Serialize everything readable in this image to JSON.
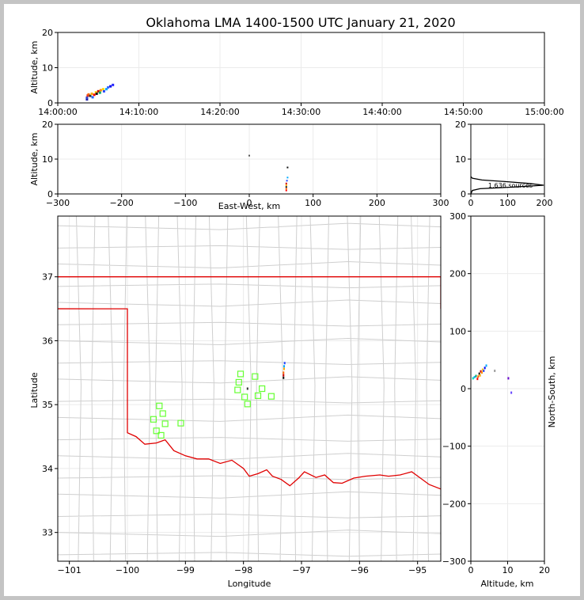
{
  "title": "Oklahoma LMA 1400-1500 UTC January 21, 2020",
  "colors": {
    "frame": "#c4c4c4",
    "grid": "#ebebeb",
    "county": "#cfcfcf",
    "state_border": "#e00000",
    "station": "#66ff33",
    "axis": "#000000"
  },
  "chart_data": [
    {
      "id": "time_height",
      "type": "scatter",
      "xlabel": "",
      "ylabel": "Altitude, km",
      "xticks": [
        "14:00:00",
        "14:10:00",
        "14:20:00",
        "14:30:00",
        "14:40:00",
        "14:50:00",
        "15:00:00"
      ],
      "xlim_minutes": [
        0,
        60
      ],
      "ylim": [
        0,
        20
      ],
      "yticks": [
        0,
        10,
        20
      ],
      "points": [
        {
          "t": 3.6,
          "z": 1.0,
          "c": "#2222aa"
        },
        {
          "t": 3.6,
          "z": 1.5,
          "c": "#3344cc"
        },
        {
          "t": 3.7,
          "z": 2.1,
          "c": "#dd2222"
        },
        {
          "t": 3.8,
          "z": 2.4,
          "c": "#ff6600"
        },
        {
          "t": 4.0,
          "z": 2.0,
          "c": "#333333"
        },
        {
          "t": 4.2,
          "z": 2.6,
          "c": "#ffaa00"
        },
        {
          "t": 4.3,
          "z": 1.6,
          "c": "#2266ff"
        },
        {
          "t": 4.5,
          "z": 2.3,
          "c": "#ff0000"
        },
        {
          "t": 4.7,
          "z": 3.0,
          "c": "#ffcc00"
        },
        {
          "t": 4.8,
          "z": 2.6,
          "c": "#111111"
        },
        {
          "t": 5.0,
          "z": 3.3,
          "c": "#cc0000"
        },
        {
          "t": 5.2,
          "z": 2.9,
          "c": "#00aa66"
        },
        {
          "t": 5.3,
          "z": 3.6,
          "c": "#ff8800"
        },
        {
          "t": 5.6,
          "z": 3.9,
          "c": "#ffdd00"
        },
        {
          "t": 5.7,
          "z": 3.3,
          "c": "#2244ff"
        },
        {
          "t": 6.0,
          "z": 3.9,
          "c": "#00aaff"
        },
        {
          "t": 6.2,
          "z": 4.4,
          "c": "#3366ff"
        },
        {
          "t": 6.5,
          "z": 4.7,
          "c": "#0000ee"
        },
        {
          "t": 6.8,
          "z": 5.1,
          "c": "#2222ff"
        }
      ]
    },
    {
      "id": "ew_height",
      "type": "scatter",
      "xlabel": "East-West, km",
      "ylabel": "Altitude, km",
      "xticks": [
        -300,
        -200,
        -100,
        0,
        100,
        200,
        300
      ],
      "xlim": [
        -300,
        300
      ],
      "ylim": [
        0,
        20
      ],
      "yticks": [
        0,
        10,
        20
      ],
      "points": [
        {
          "x": 58,
          "z": 1.0,
          "c": "#ff0000"
        },
        {
          "x": 58,
          "z": 1.5,
          "c": "#ff6600"
        },
        {
          "x": 58,
          "z": 2.0,
          "c": "#111111"
        },
        {
          "x": 58,
          "z": 2.5,
          "c": "#ffaa00"
        },
        {
          "x": 58,
          "z": 3.0,
          "c": "#cc0000"
        },
        {
          "x": 59,
          "z": 3.8,
          "c": "#2244ff"
        },
        {
          "x": 60,
          "z": 4.7,
          "c": "#00aaff"
        },
        {
          "x": 60,
          "z": 7.6,
          "c": "#111111"
        },
        {
          "x": 0,
          "z": 11.0,
          "c": "#555555"
        }
      ]
    },
    {
      "id": "altitude_histogram",
      "type": "line",
      "xlabel": "",
      "ylabel": "",
      "xticks": [
        0,
        100,
        200
      ],
      "xlim": [
        0,
        200
      ],
      "ylim": [
        0,
        20
      ],
      "yticks": [
        0,
        10,
        20
      ],
      "annotation": "1,636 sources",
      "profile": [
        {
          "z": 0.0,
          "n": 0
        },
        {
          "z": 1.0,
          "n": 4
        },
        {
          "z": 1.5,
          "n": 25
        },
        {
          "z": 2.0,
          "n": 120
        },
        {
          "z": 2.5,
          "n": 198
        },
        {
          "z": 3.0,
          "n": 160
        },
        {
          "z": 3.5,
          "n": 100
        },
        {
          "z": 4.0,
          "n": 30
        },
        {
          "z": 4.5,
          "n": 4
        },
        {
          "z": 5.0,
          "n": 0
        }
      ]
    },
    {
      "id": "plan_view",
      "type": "scatter",
      "xlabel": "Longitude",
      "ylabel": "Latitude",
      "xticks": [
        -101,
        -100,
        -99,
        -98,
        -97,
        -96,
        -95
      ],
      "yticks": [
        33,
        34,
        35,
        36,
        37
      ],
      "xlim": [
        -101.2,
        -94.6
      ],
      "ylim": [
        32.55,
        37.95
      ],
      "stations": [
        {
          "lon": -98.05,
          "lat": 35.48
        },
        {
          "lon": -98.08,
          "lat": 35.35
        },
        {
          "lon": -98.1,
          "lat": 35.23
        },
        {
          "lon": -97.98,
          "lat": 35.12
        },
        {
          "lon": -97.93,
          "lat": 35.01
        },
        {
          "lon": -97.8,
          "lat": 35.44
        },
        {
          "lon": -97.68,
          "lat": 35.25
        },
        {
          "lon": -97.75,
          "lat": 35.14
        },
        {
          "lon": -97.52,
          "lat": 35.13
        },
        {
          "lon": -99.45,
          "lat": 34.98
        },
        {
          "lon": -99.39,
          "lat": 34.86
        },
        {
          "lon": -99.55,
          "lat": 34.77
        },
        {
          "lon": -99.35,
          "lat": 34.7
        },
        {
          "lon": -99.08,
          "lat": 34.71
        },
        {
          "lon": -99.5,
          "lat": 34.59
        },
        {
          "lon": -99.42,
          "lat": 34.52
        }
      ],
      "sources": [
        {
          "lon": -97.31,
          "lat": 35.42,
          "c": "#111111"
        },
        {
          "lon": -97.31,
          "lat": 35.46,
          "c": "#cc0000"
        },
        {
          "lon": -97.31,
          "lat": 35.5,
          "c": "#ff6600"
        },
        {
          "lon": -97.3,
          "lat": 35.56,
          "c": "#ffaa00"
        },
        {
          "lon": -97.3,
          "lat": 35.6,
          "c": "#00aaff"
        },
        {
          "lon": -97.29,
          "lat": 35.65,
          "c": "#2244ff"
        },
        {
          "lon": -97.93,
          "lat": 35.25,
          "c": "#333333"
        }
      ]
    },
    {
      "id": "ns_height",
      "type": "scatter",
      "xlabel": "Altitude, km",
      "ylabel": "North-South, km",
      "xticks": [
        0,
        10,
        20
      ],
      "xlim": [
        0,
        20
      ],
      "ylim": [
        -300,
        300
      ],
      "yticks": [
        -300,
        -200,
        -100,
        0,
        100,
        200,
        300
      ],
      "points": [
        {
          "z": 0.6,
          "y": 18,
          "c": "#00ddaa"
        },
        {
          "z": 1.0,
          "y": 20,
          "c": "#22aaff"
        },
        {
          "z": 1.4,
          "y": 22,
          "c": "#00aa66"
        },
        {
          "z": 1.8,
          "y": 17,
          "c": "#ff0000"
        },
        {
          "z": 2.0,
          "y": 21,
          "c": "#ff6600"
        },
        {
          "z": 2.3,
          "y": 26,
          "c": "#111111"
        },
        {
          "z": 2.5,
          "y": 23,
          "c": "#ffaa00"
        },
        {
          "z": 2.7,
          "y": 30,
          "c": "#cc0000"
        },
        {
          "z": 3.0,
          "y": 28,
          "c": "#ff8800"
        },
        {
          "z": 3.2,
          "y": 33,
          "c": "#ffcc00"
        },
        {
          "z": 3.5,
          "y": 31,
          "c": "#2244ff"
        },
        {
          "z": 3.8,
          "y": 36,
          "c": "#0000ee"
        },
        {
          "z": 4.2,
          "y": 40,
          "c": "#00aaff"
        },
        {
          "z": 6.5,
          "y": 31,
          "c": "#999999"
        },
        {
          "z": 10.2,
          "y": 18,
          "c": "#6600cc"
        },
        {
          "z": 11.0,
          "y": -7,
          "c": "#6644ff"
        }
      ]
    }
  ]
}
